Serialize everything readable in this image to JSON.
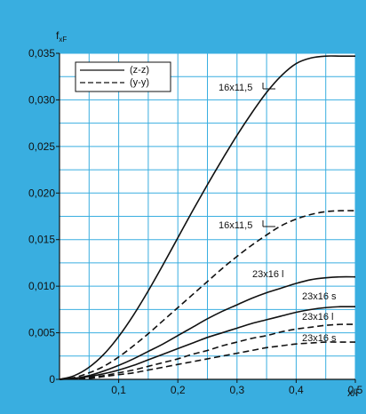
{
  "chart_data": {
    "type": "line",
    "ylabel": "f",
    "ylabel_sub": "xF",
    "xlabel": "x/l",
    "xlim": [
      0,
      0.5
    ],
    "ylim": [
      0,
      0.035
    ],
    "x_ticks": [
      0.1,
      0.2,
      0.3,
      0.4,
      0.5
    ],
    "x_tick_labels": [
      "0,1",
      "0,2",
      "0,3",
      "0,4",
      "0,5"
    ],
    "y_ticks": [
      0,
      0.005,
      0.01,
      0.015,
      0.02,
      0.025,
      0.03,
      0.035
    ],
    "y_tick_labels": [
      "0",
      "0,005",
      "0,010",
      "0,015",
      "0,020",
      "0,025",
      "0,030",
      "0,035"
    ],
    "grid": true,
    "legend_position": "top-left",
    "legend": [
      {
        "label": "(z-z)",
        "style": "solid"
      },
      {
        "label": "(y-y)",
        "style": "dashed"
      }
    ],
    "colors": {
      "background": "#39aee0",
      "plot": "#ffffff",
      "grid": "#39aee0",
      "lines": "#111111"
    },
    "series": [
      {
        "label": "16x11,5",
        "style": "solid",
        "x": [
          0,
          0.025,
          0.05,
          0.075,
          0.1,
          0.125,
          0.15,
          0.175,
          0.2,
          0.225,
          0.25,
          0.275,
          0.3,
          0.325,
          0.35,
          0.375,
          0.4,
          0.425,
          0.45,
          0.475,
          0.5
        ],
        "y": [
          0,
          0.0004,
          0.0013,
          0.0027,
          0.0046,
          0.0069,
          0.0095,
          0.0123,
          0.0152,
          0.0181,
          0.0209,
          0.0236,
          0.0262,
          0.0286,
          0.0308,
          0.0326,
          0.0339,
          0.0345,
          0.0347,
          0.0347,
          0.0347
        ]
      },
      {
        "label": "16x11,5",
        "style": "dashed",
        "x": [
          0,
          0.025,
          0.05,
          0.075,
          0.1,
          0.125,
          0.15,
          0.175,
          0.2,
          0.225,
          0.25,
          0.275,
          0.3,
          0.325,
          0.35,
          0.375,
          0.4,
          0.425,
          0.45,
          0.475,
          0.5
        ],
        "y": [
          0,
          0.0002,
          0.0007,
          0.0014,
          0.0024,
          0.0036,
          0.0049,
          0.0063,
          0.0077,
          0.0091,
          0.0105,
          0.0119,
          0.0132,
          0.0144,
          0.0155,
          0.0165,
          0.0172,
          0.0177,
          0.018,
          0.0181,
          0.0181
        ]
      },
      {
        "label": "23x16 l",
        "style": "solid",
        "x": [
          0,
          0.025,
          0.05,
          0.075,
          0.1,
          0.125,
          0.15,
          0.175,
          0.2,
          0.225,
          0.25,
          0.275,
          0.3,
          0.325,
          0.35,
          0.375,
          0.4,
          0.425,
          0.45,
          0.475,
          0.5
        ],
        "y": [
          0,
          0.0001,
          0.0004,
          0.0009,
          0.0015,
          0.0022,
          0.003,
          0.0038,
          0.0047,
          0.0056,
          0.0065,
          0.0073,
          0.008,
          0.0087,
          0.0093,
          0.0098,
          0.0103,
          0.0107,
          0.0109,
          0.011,
          0.011
        ]
      },
      {
        "label": "23x16 s",
        "style": "solid",
        "x": [
          0,
          0.025,
          0.05,
          0.075,
          0.1,
          0.125,
          0.15,
          0.175,
          0.2,
          0.225,
          0.25,
          0.275,
          0.3,
          0.325,
          0.35,
          0.375,
          0.4,
          0.425,
          0.45,
          0.475,
          0.5
        ],
        "y": [
          0,
          0.0001,
          0.0003,
          0.0006,
          0.001,
          0.0015,
          0.0021,
          0.0027,
          0.0033,
          0.0039,
          0.0045,
          0.005,
          0.0055,
          0.006,
          0.0064,
          0.0068,
          0.0072,
          0.0075,
          0.0077,
          0.0078,
          0.0078
        ]
      },
      {
        "label": "23x16 l",
        "style": "dashed",
        "x": [
          0,
          0.025,
          0.05,
          0.075,
          0.1,
          0.125,
          0.15,
          0.175,
          0.2,
          0.225,
          0.25,
          0.275,
          0.3,
          0.325,
          0.35,
          0.375,
          0.4,
          0.425,
          0.45,
          0.475,
          0.5
        ],
        "y": [
          0,
          0.0001,
          0.0002,
          0.0004,
          0.0007,
          0.001,
          0.0014,
          0.0018,
          0.0022,
          0.0027,
          0.0031,
          0.0036,
          0.004,
          0.0044,
          0.0047,
          0.0051,
          0.0054,
          0.0056,
          0.0058,
          0.0059,
          0.0059
        ]
      },
      {
        "label": "23x16 s",
        "style": "dashed",
        "x": [
          0,
          0.025,
          0.05,
          0.075,
          0.1,
          0.125,
          0.15,
          0.175,
          0.2,
          0.225,
          0.25,
          0.275,
          0.3,
          0.325,
          0.35,
          0.375,
          0.4,
          0.425,
          0.45,
          0.475,
          0.5
        ],
        "y": [
          0,
          0.0001,
          0.0001,
          0.0003,
          0.0005,
          0.0007,
          0.001,
          0.0013,
          0.0016,
          0.0019,
          0.0022,
          0.0025,
          0.0028,
          0.0031,
          0.0034,
          0.0036,
          0.0038,
          0.0039,
          0.004,
          0.004,
          0.004
        ]
      }
    ]
  }
}
